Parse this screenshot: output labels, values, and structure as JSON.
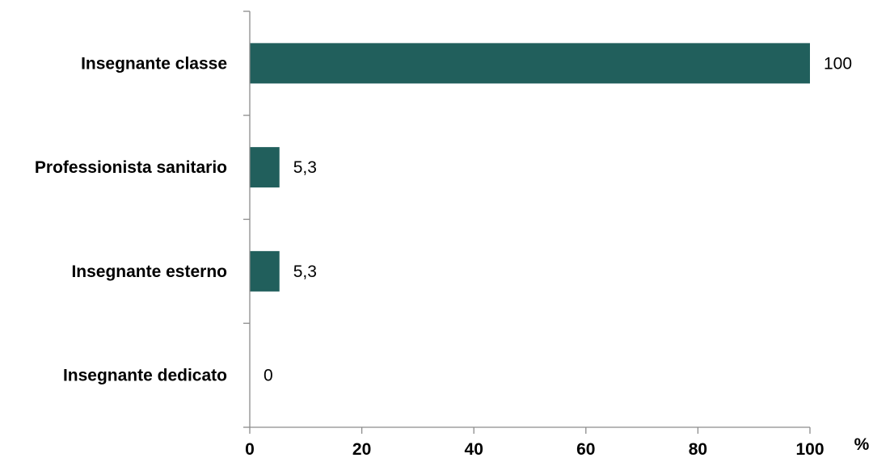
{
  "chart_data": {
    "type": "bar",
    "orientation": "horizontal",
    "categories": [
      "Insegnante classe",
      "Professionista sanitario",
      "Insegnante esterno",
      "Insegnante dedicato"
    ],
    "values": [
      100,
      5.3,
      5.3,
      0
    ],
    "data_labels": [
      "100",
      "5,3",
      "5,3",
      "0"
    ],
    "x_ticks": [
      "0",
      "20",
      "40",
      "60",
      "80",
      "100"
    ],
    "x_unit": "%",
    "xlim": [
      0,
      100
    ],
    "grid": false,
    "legend": "none",
    "bar_color": "#215f5c"
  }
}
